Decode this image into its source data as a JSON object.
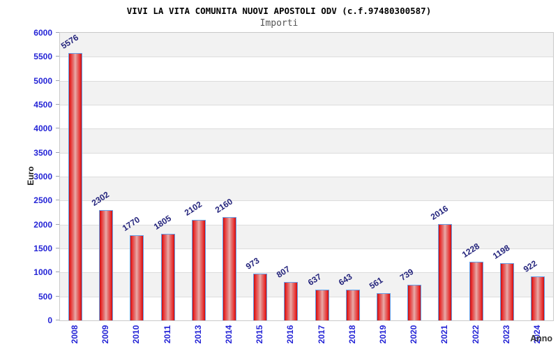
{
  "header": {
    "title": "VIVI LA VITA COMUNITA NUOVI APOSTOLI ODV (c.f.97480300587)",
    "subtitle": "Importi"
  },
  "chart_data": {
    "type": "bar",
    "title": "VIVI LA VITA COMUNITA NUOVI APOSTOLI ODV (c.f.97480300587)",
    "subtitle": "Importi",
    "xlabel": "Anno",
    "ylabel": "Euro",
    "categories": [
      "2008",
      "2009",
      "2010",
      "2011",
      "2013",
      "2014",
      "2015",
      "2016",
      "2017",
      "2018",
      "2019",
      "2020",
      "2021",
      "2022",
      "2023",
      "2024"
    ],
    "values": [
      5576,
      2302,
      1770,
      1805,
      2102,
      2160,
      973,
      807,
      637,
      643,
      561,
      739,
      2016,
      1228,
      1198,
      922
    ],
    "ylim": [
      0,
      6000
    ],
    "ytick_step": 500,
    "grid": "horizontal-bands",
    "legend": "none",
    "colors": {
      "bar_border": "#64a0e8",
      "bar_red_dark": "#c90d0d",
      "bar_red_light": "#ecaba9",
      "value_label": "#24247c",
      "tick_label": "#2424d6",
      "band_gray": "#f2f2f2",
      "band_white": "#ffffff",
      "grid_line": "#dcdcdc",
      "plot_border": "#c9c9c9",
      "title_color": "#000000",
      "subtitle_color": "#555555",
      "axis_title_color": "#1a1a1a"
    }
  }
}
